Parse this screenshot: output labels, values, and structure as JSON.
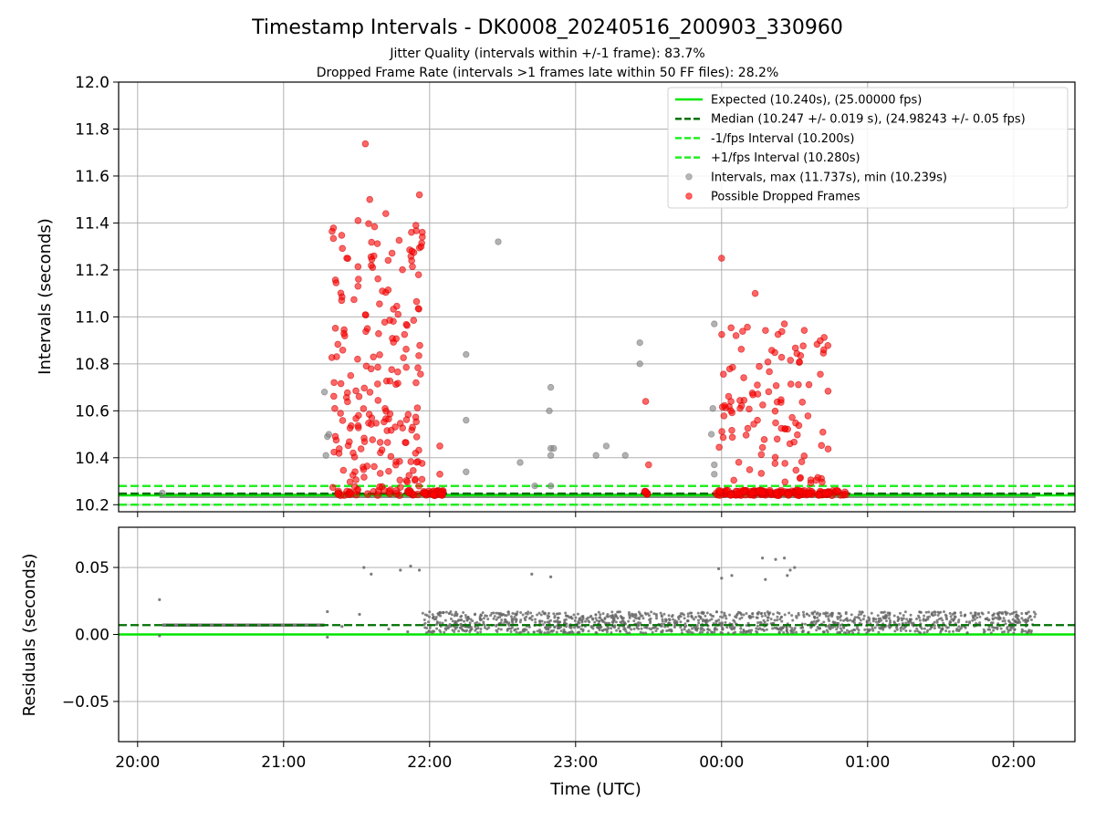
{
  "chart_data": {
    "title": "Timestamp Intervals - DK0008_20240516_200903_330960",
    "subtitles": [
      "Jitter Quality (intervals within +/-1 frame): 83.7%",
      "Dropped Frame Rate (intervals >1 frames late within 50 FF files): 28.2%"
    ],
    "xlabel": "Time (UTC)",
    "x_ticks": [
      "20:00",
      "21:00",
      "22:00",
      "23:00",
      "00:00",
      "01:00",
      "02:00"
    ],
    "x_range_hours": [
      19.87,
      26.42
    ],
    "colors": {
      "expected": "#00e600",
      "median": "#007000",
      "bounds": "#22ee22",
      "normal": "#888888",
      "dropped": "#ff0000",
      "residual": "#666666"
    },
    "top": {
      "type": "scatter",
      "ylabel": "Intervals (seconds)",
      "ylim": [
        10.17,
        12.0
      ],
      "yticks": [
        "10.2",
        "10.4",
        "10.6",
        "10.8",
        "11.0",
        "11.2",
        "11.4",
        "11.6",
        "11.8",
        "12.0"
      ],
      "grid": true,
      "legend_position": "top-right",
      "expected": 10.24,
      "median": 10.247,
      "minus_bound": 10.2,
      "plus_bound": 10.28,
      "baseline_range_hours": [
        20.15,
        26.15
      ],
      "legend": [
        {
          "label": "Expected (10.240s), (25.00000 fps)",
          "style": "solid",
          "color": "#00e600"
        },
        {
          "label": "Median (10.247 +/- 0.019 s), (24.98243 +/- 0.05 fps)",
          "style": "dashed",
          "color": "#007000"
        },
        {
          "label": "-1/fps Interval (10.200s)",
          "style": "dashed",
          "color": "#22ee22"
        },
        {
          "label": "+1/fps Interval (10.280s)",
          "style": "dashed",
          "color": "#22ee22"
        },
        {
          "label": "Intervals, max (11.737s), min (10.239s)",
          "style": "marker",
          "color": "#888888"
        },
        {
          "label": "Possible Dropped Frames",
          "style": "marker",
          "color": "#ff0000"
        }
      ],
      "clusters_dropped": [
        {
          "x_range": [
            21.33,
            21.95
          ],
          "y_range": [
            10.26,
            11.4
          ],
          "count": 200
        },
        {
          "x_range": [
            23.98,
            24.73
          ],
          "y_range": [
            10.29,
            10.97
          ],
          "count": 110
        }
      ],
      "dense_dropped_bands": [
        {
          "x_range": [
            21.35,
            21.92
          ],
          "y": 10.25,
          "count": 30
        },
        {
          "x_range": [
            21.95,
            22.1
          ],
          "y": 10.25,
          "count": 30
        },
        {
          "x_range": [
            23.47,
            23.52
          ],
          "y": 10.25,
          "count": 6
        },
        {
          "x_range": [
            23.96,
            24.85
          ],
          "y": 10.25,
          "count": 150
        }
      ],
      "dropped_points": [
        {
          "x": 21.56,
          "y": 11.737
        },
        {
          "x": 21.59,
          "y": 11.5
        },
        {
          "x": 21.7,
          "y": 11.44
        },
        {
          "x": 21.51,
          "y": 11.41
        },
        {
          "x": 21.93,
          "y": 11.52
        },
        {
          "x": 21.95,
          "y": 11.36
        },
        {
          "x": 21.95,
          "y": 11.34
        },
        {
          "x": 22.07,
          "y": 10.45
        },
        {
          "x": 22.07,
          "y": 10.33
        },
        {
          "x": 23.48,
          "y": 10.64
        },
        {
          "x": 23.5,
          "y": 10.37
        },
        {
          "x": 24.0,
          "y": 11.25
        },
        {
          "x": 24.23,
          "y": 11.1
        },
        {
          "x": 24.43,
          "y": 10.97
        },
        {
          "x": 24.7,
          "y": 10.86
        }
      ],
      "normal_points": [
        {
          "x": 21.28,
          "y": 10.68
        },
        {
          "x": 21.3,
          "y": 10.49
        },
        {
          "x": 21.31,
          "y": 10.5
        },
        {
          "x": 21.29,
          "y": 10.41
        },
        {
          "x": 22.25,
          "y": 10.84
        },
        {
          "x": 22.25,
          "y": 10.56
        },
        {
          "x": 22.25,
          "y": 10.34
        },
        {
          "x": 22.47,
          "y": 11.32
        },
        {
          "x": 22.62,
          "y": 10.38
        },
        {
          "x": 22.72,
          "y": 10.28
        },
        {
          "x": 22.83,
          "y": 10.7
        },
        {
          "x": 22.82,
          "y": 10.6
        },
        {
          "x": 22.83,
          "y": 10.44
        },
        {
          "x": 22.85,
          "y": 10.44
        },
        {
          "x": 22.83,
          "y": 10.41
        },
        {
          "x": 22.83,
          "y": 10.28
        },
        {
          "x": 23.14,
          "y": 10.41
        },
        {
          "x": 23.21,
          "y": 10.45
        },
        {
          "x": 23.34,
          "y": 10.41
        },
        {
          "x": 23.44,
          "y": 10.89
        },
        {
          "x": 23.44,
          "y": 10.8
        },
        {
          "x": 23.95,
          "y": 10.97
        },
        {
          "x": 23.94,
          "y": 10.61
        },
        {
          "x": 23.93,
          "y": 10.5
        },
        {
          "x": 23.95,
          "y": 10.37
        },
        {
          "x": 23.95,
          "y": 10.33
        },
        {
          "x": 20.17,
          "y": 10.25
        }
      ]
    },
    "bottom": {
      "type": "scatter",
      "ylabel": "Residuals (seconds)",
      "ylim": [
        -0.08,
        0.08
      ],
      "yticks": [
        "−0.05",
        "0.00",
        "0.05"
      ],
      "ytick_values": [
        -0.05,
        0.0,
        0.05
      ],
      "grid": true,
      "expected": 0.0,
      "median": 0.007,
      "early_band": {
        "x_range": [
          20.17,
          21.28
        ],
        "y": 0.007
      },
      "dense_band": {
        "x_range": [
          21.95,
          26.15
        ],
        "y_range": [
          0.001,
          0.017
        ],
        "count": 1400
      },
      "sparse_points": [
        {
          "x": 20.15,
          "y": 0.026
        },
        {
          "x": 20.15,
          "y": -0.001
        },
        {
          "x": 21.3,
          "y": 0.017
        },
        {
          "x": 21.3,
          "y": -0.002
        },
        {
          "x": 21.55,
          "y": 0.05
        },
        {
          "x": 21.6,
          "y": 0.045
        },
        {
          "x": 21.8,
          "y": 0.048
        },
        {
          "x": 21.87,
          "y": 0.051
        },
        {
          "x": 21.93,
          "y": 0.048
        },
        {
          "x": 22.7,
          "y": 0.045
        },
        {
          "x": 22.83,
          "y": 0.043
        },
        {
          "x": 23.98,
          "y": 0.049
        },
        {
          "x": 24.0,
          "y": 0.042
        },
        {
          "x": 24.07,
          "y": 0.044
        },
        {
          "x": 24.28,
          "y": 0.057
        },
        {
          "x": 24.37,
          "y": 0.056
        },
        {
          "x": 24.43,
          "y": 0.057
        },
        {
          "x": 24.3,
          "y": 0.041
        },
        {
          "x": 24.47,
          "y": 0.048
        },
        {
          "x": 24.5,
          "y": 0.05
        },
        {
          "x": 24.45,
          "y": 0.044
        },
        {
          "x": 21.4,
          "y": 0.006
        },
        {
          "x": 21.52,
          "y": 0.015
        },
        {
          "x": 21.72,
          "y": 0.004
        },
        {
          "x": 21.85,
          "y": 0.002
        }
      ]
    }
  }
}
